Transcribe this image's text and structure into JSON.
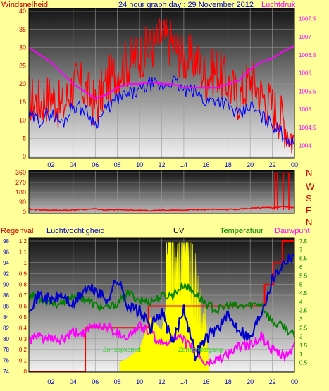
{
  "header": {
    "left_label": "Windsnelheid",
    "title": "24 hour graph day : 29 November 2012",
    "right_label": "Luchtdruk"
  },
  "middle": {
    "compass": [
      "N",
      "W",
      "S",
      "E",
      "N"
    ]
  },
  "bottom": {
    "labels": {
      "rain": "Regenval",
      "humidity": "Luchtvochtigheid",
      "uv": "UV",
      "temperature": "Temperatuur",
      "dewpoint": "Dauwpunt"
    },
    "annotations": [
      "Zonsopkomst",
      "Zonsondergang"
    ]
  },
  "colors": {
    "background": "#ffff99",
    "wind": "#ff0000",
    "gust_avg": "#0000ff",
    "pressure": "#ff00ff",
    "humidity": "#0000cc",
    "temperature": "#008000",
    "dewpoint": "#ff00ff",
    "rain": "#ff0000",
    "uv": "#ffff00",
    "label_red": "#cc0000",
    "label_blue": "#0000cc",
    "label_green": "#008000",
    "label_magenta": "#ff00ff"
  },
  "chart_data": [
    {
      "type": "line",
      "name": "wind-pressure",
      "xlabel": "",
      "ylabel": "Windsnelheid",
      "x_ticks": [
        "02",
        "04",
        "06",
        "08",
        "10",
        "12",
        "14",
        "16",
        "18",
        "20",
        "22",
        "00"
      ],
      "ylim": [
        0,
        40
      ],
      "y_ticks": [
        "0",
        "5",
        "10",
        "15",
        "20",
        "25",
        "30",
        "35",
        "40"
      ],
      "y2lim": [
        1003.7,
        1007.7
      ],
      "y2_ticks": [
        "1004",
        "1004.5",
        "1005",
        "1005.5",
        "1006",
        "1006.5",
        "1007",
        "1007.5"
      ],
      "series": [
        {
          "hours": [
            0,
            1,
            2,
            3,
            4,
            5,
            6,
            7,
            8,
            9,
            10,
            11,
            12,
            13,
            14,
            15,
            16,
            17,
            18,
            19,
            20,
            21,
            22,
            23,
            24
          ],
          "values": [
            16,
            15,
            17,
            13,
            20,
            19,
            14,
            20,
            24,
            26,
            28,
            30,
            33,
            31,
            27,
            27,
            22,
            24,
            20,
            16,
            22,
            17,
            14,
            10,
            4
          ]
        },
        {
          "hours": [
            0,
            1,
            2,
            3,
            4,
            5,
            6,
            7,
            8,
            9,
            10,
            11,
            12,
            13,
            14,
            15,
            16,
            17,
            18,
            19,
            20,
            21,
            22,
            23,
            24
          ],
          "values": [
            11,
            10,
            12,
            9,
            14,
            13,
            9,
            13,
            16,
            17,
            18,
            20,
            19,
            21,
            18,
            18,
            15,
            16,
            14,
            11,
            14,
            11,
            9,
            6,
            3
          ]
        },
        {
          "hours": [
            0,
            1,
            2,
            3,
            4,
            5,
            6,
            7,
            8,
            9,
            10,
            11,
            12,
            13,
            14,
            15,
            16,
            17,
            18,
            19,
            20,
            21,
            22,
            23,
            24
          ],
          "values": [
            1006.7,
            1006.5,
            1006.3,
            1006.0,
            1005.7,
            1005.5,
            1005.3,
            1005.4,
            1005.6,
            1005.7,
            1005.7,
            1005.75,
            1005.7,
            1005.7,
            1005.6,
            1005.6,
            1005.6,
            1005.6,
            1005.7,
            1005.8,
            1006.1,
            1006.3,
            1006.4,
            1006.6,
            1006.75
          ]
        }
      ]
    },
    {
      "type": "line",
      "name": "wind-direction",
      "xlabel": "",
      "ylabel": "",
      "ylim": [
        0,
        360
      ],
      "y_ticks": [
        "0",
        "90",
        "180",
        "270",
        "360"
      ],
      "series": [
        {
          "hours": [
            0,
            1,
            2,
            3,
            4,
            5,
            6,
            7,
            8,
            9,
            10,
            11,
            12,
            13,
            14,
            15,
            16,
            17,
            18,
            19,
            20,
            21,
            22,
            23,
            24
          ],
          "values": [
            28,
            22,
            18,
            17,
            20,
            25,
            30,
            18,
            22,
            20,
            16,
            14,
            18,
            20,
            16,
            22,
            24,
            26,
            24,
            28,
            34,
            38,
            40,
            50,
            42
          ]
        }
      ]
    },
    {
      "type": "line",
      "name": "weather",
      "xlabel": "",
      "ylabel": "",
      "humidity_ylim": [
        74,
        98
      ],
      "humidity_ticks": [
        "74",
        "76",
        "78",
        "80",
        "82",
        "84",
        "86",
        "88",
        "90",
        "92",
        "94",
        "96",
        "98"
      ],
      "rain_ylim": [
        0,
        1.2
      ],
      "rain_ticks": [
        "0",
        "0.1",
        "0.2",
        "0.3",
        "0.4",
        "0.5",
        "0.6",
        "0.7",
        "0.8",
        "0.9",
        "1",
        "1.1",
        "1.2"
      ],
      "temp_ylim": [
        0,
        7.5
      ],
      "temp_ticks": [
        "0.5",
        "1",
        "1.5",
        "2",
        "2.5",
        "3",
        "3.5",
        "4",
        "4.5",
        "5",
        "5.5",
        "6",
        "6.5",
        "7",
        "7.5"
      ],
      "series": [
        {
          "hours": [
            0,
            1,
            2,
            3,
            4,
            5,
            6,
            7,
            8,
            9,
            10,
            11,
            12,
            13,
            14,
            15,
            16,
            17,
            18,
            19,
            20,
            21,
            22,
            23,
            24
          ],
          "values": [
            86,
            88,
            87,
            88,
            86,
            89,
            89,
            87,
            91,
            86,
            85,
            82,
            85,
            79,
            86,
            77,
            80,
            82,
            84,
            82,
            80,
            85,
            91,
            94,
            96
          ]
        },
        {
          "hours": [
            0,
            1,
            2,
            3,
            4,
            5,
            6,
            7,
            8,
            9,
            10,
            11,
            12,
            13,
            14,
            15,
            16,
            17,
            18,
            19,
            20,
            21,
            22,
            23,
            24
          ],
          "values": [
            4.4,
            4.2,
            4.0,
            3.8,
            4.4,
            4.2,
            3.8,
            3.6,
            3.9,
            4.5,
            4.1,
            4.0,
            4.3,
            4.4,
            5.0,
            4.5,
            3.9,
            3.5,
            3.8,
            3.7,
            3.8,
            3.9,
            2.8,
            2.6,
            2.0
          ]
        },
        {
          "hours": [
            0,
            1,
            2,
            3,
            4,
            5,
            6,
            7,
            8,
            9,
            10,
            11,
            12,
            13,
            14,
            15,
            16,
            17,
            18,
            19,
            20,
            21,
            22,
            23,
            24
          ],
          "values": [
            1.8,
            2.0,
            1.8,
            1.8,
            2.2,
            2.2,
            2.6,
            2.6,
            2.2,
            2.0,
            2.6,
            2.2,
            1.5,
            2.0,
            1.7,
            1.2,
            0.4,
            0.7,
            1.0,
            1.4,
            1.5,
            2.0,
            1.2,
            0.8,
            1.4
          ]
        },
        {
          "hours": [
            0,
            4.8,
            5.1,
            8.2,
            10.8,
            20.8,
            21.3,
            22.1,
            22.9,
            24
          ],
          "values": [
            0,
            0,
            0.4,
            0.4,
            0.6,
            0.6,
            0.8,
            1.0,
            1.2,
            1.2
          ]
        },
        {
          "hours": [
            8.2,
            9,
            10,
            11,
            12,
            12.6,
            13,
            13.5,
            14,
            14.5,
            15,
            15.5,
            16,
            16.3
          ],
          "values": [
            0.2,
            0.3,
            0.5,
            1.2,
            0.9,
            1.7,
            1.5,
            1.3,
            1.9,
            1.5,
            1.1,
            0.8,
            0.6,
            0
          ]
        }
      ]
    }
  ]
}
